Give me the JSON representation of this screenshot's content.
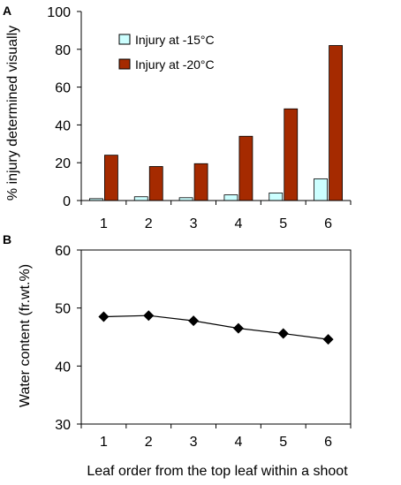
{
  "colors": {
    "injury_15": "#ccffff",
    "injury_20": "#a52a00",
    "line": "#000000",
    "axis": "#000000"
  },
  "chart_data": [
    {
      "panel": "A",
      "type": "bar",
      "categories": [
        "1",
        "2",
        "3",
        "4",
        "5",
        "6"
      ],
      "series": [
        {
          "name": "Injury at -15°C",
          "values": [
            1,
            2,
            1.5,
            3,
            4,
            11.5
          ]
        },
        {
          "name": "Injury at -20°C",
          "values": [
            24,
            18,
            19.5,
            34,
            48.5,
            82
          ]
        }
      ],
      "title": "",
      "xlabel": "",
      "ylabel": "% injury determined visually",
      "ylim": [
        0,
        100
      ],
      "yticks": [
        "0",
        "20",
        "40",
        "60",
        "80",
        "100"
      ],
      "legend": "top-left",
      "grid": false
    },
    {
      "panel": "B",
      "type": "line",
      "x": [
        "1",
        "2",
        "3",
        "4",
        "5",
        "6"
      ],
      "y": [
        48.5,
        48.7,
        47.8,
        46.5,
        45.6,
        44.6
      ],
      "title": "",
      "xlabel": "Leaf order from the top leaf within a shoot",
      "ylabel": "Water content (fr.wt.%)",
      "ylim": [
        30,
        60
      ],
      "yticks": [
        "30",
        "40",
        "50",
        "60"
      ],
      "grid": false
    }
  ]
}
